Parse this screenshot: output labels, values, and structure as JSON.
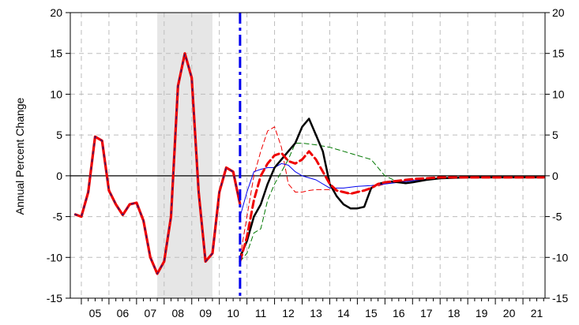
{
  "chart_data": {
    "type": "line",
    "title": "",
    "ylabel": "Annual Percent Change",
    "ylim": [
      -15,
      20
    ],
    "yticks": [
      -15,
      -10,
      -5,
      0,
      5,
      10,
      15,
      20
    ],
    "xlim": [
      2004.6,
      2021.8
    ],
    "xtick_labels": [
      "05",
      "06",
      "07",
      "08",
      "09",
      "10",
      "11",
      "12",
      "13",
      "14",
      "15",
      "16",
      "17",
      "18",
      "19",
      "20",
      "21"
    ],
    "grid": true,
    "zero_line": true,
    "recession_shade": {
      "from": 2007.75,
      "to": 2009.75
    },
    "forecast_start_line": {
      "x": 2010.75,
      "color": "#0000ee"
    },
    "history": {
      "x": [
        2004.75,
        2005.0,
        2005.25,
        2005.5,
        2005.75,
        2006.0,
        2006.25,
        2006.5,
        2006.75,
        2007.0,
        2007.25,
        2007.5,
        2007.75,
        2008.0,
        2008.25,
        2008.5,
        2008.75,
        2009.0,
        2009.25,
        2009.5,
        2009.75,
        2010.0,
        2010.25,
        2010.5,
        2010.75
      ],
      "y": [
        -4.7,
        -5.0,
        -2.0,
        4.8,
        4.3,
        -1.8,
        -3.5,
        -4.8,
        -3.5,
        -3.3,
        -5.5,
        -10.0,
        -12.0,
        -10.5,
        -5.0,
        11.0,
        15.0,
        12.0,
        -2.0,
        -10.5,
        -9.5,
        -2.0,
        1.0,
        0.5,
        -3.5
      ]
    },
    "series": [
      {
        "color": "#000000",
        "dash": "",
        "width": 2.5,
        "x": [
          2010.75,
          2011.0,
          2011.25,
          2011.5,
          2011.75,
          2012.0,
          2012.25,
          2012.5,
          2012.75,
          2013.0,
          2013.25,
          2013.5,
          2013.75,
          2014.0,
          2014.25,
          2014.5,
          2014.75,
          2015.0,
          2015.25,
          2015.5,
          2015.75,
          2016.0,
          2016.25,
          2016.5,
          2016.75,
          2017.0,
          2017.5,
          2018.0,
          2019.0,
          2020.0,
          2021.0,
          2021.75
        ],
        "y": [
          -10.0,
          -8.0,
          -5.0,
          -3.5,
          -1.0,
          1.0,
          2.0,
          3.0,
          4.0,
          6.0,
          7.0,
          5.0,
          3.0,
          -1.0,
          -2.5,
          -3.5,
          -4.0,
          -4.0,
          -3.8,
          -1.5,
          -1.0,
          -0.8,
          -0.7,
          -0.8,
          -0.9,
          -0.8,
          -0.5,
          -0.3,
          -0.2,
          -0.2,
          -0.2,
          -0.2
        ]
      },
      {
        "color": "#ee0000",
        "dash": "9,5",
        "width": 3.0,
        "x": [
          2010.75,
          2011.0,
          2011.25,
          2011.5,
          2011.75,
          2012.0,
          2012.25,
          2012.5,
          2012.75,
          2013.0,
          2013.25,
          2013.5,
          2013.75,
          2014.0,
          2014.25,
          2014.5,
          2014.75,
          2015.0,
          2015.25,
          2015.5,
          2015.75,
          2016.0,
          2016.5,
          2017.0,
          2017.5,
          2018.0,
          2019.0,
          2020.0,
          2021.0,
          2021.75
        ],
        "y": [
          -10.5,
          -7.5,
          -3.0,
          0.0,
          1.5,
          2.5,
          2.8,
          1.8,
          1.5,
          2.0,
          3.0,
          2.0,
          0.5,
          -1.0,
          -1.8,
          -2.0,
          -2.2,
          -2.0,
          -1.8,
          -1.5,
          -1.0,
          -0.8,
          -0.6,
          -0.4,
          -0.3,
          -0.2,
          -0.2,
          -0.2,
          -0.2,
          -0.2
        ]
      },
      {
        "color": "#ee0000",
        "dash": "6,4",
        "width": 1.0,
        "x": [
          2010.75,
          2011.0,
          2011.25,
          2011.5,
          2011.75,
          2012.0,
          2012.25,
          2012.5,
          2012.75,
          2013.0,
          2013.25,
          2013.5,
          2013.75,
          2014.0,
          2014.25,
          2014.5,
          2014.75,
          2015.0,
          2015.5,
          2016.0,
          2016.5,
          2017.0,
          2018.0,
          2019.0,
          2020.0,
          2021.0,
          2021.75
        ],
        "y": [
          -10.0,
          -5.0,
          0.0,
          3.0,
          5.5,
          6.0,
          3.5,
          -1.0,
          -2.0,
          -2.0,
          -1.8,
          -1.7,
          -1.7,
          -1.7,
          -1.8,
          -2.0,
          -2.2,
          -2.0,
          -1.5,
          -1.0,
          -0.7,
          -0.5,
          -0.3,
          -0.2,
          -0.2,
          -0.2,
          -0.2
        ]
      },
      {
        "color": "#007700",
        "dash": "6,4",
        "width": 1.0,
        "x": [
          2010.75,
          2011.0,
          2011.25,
          2011.5,
          2011.75,
          2012.0,
          2012.25,
          2012.5,
          2012.75,
          2013.0,
          2013.5,
          2014.0,
          2014.5,
          2015.0,
          2015.5,
          2016.0,
          2016.5,
          2017.0,
          2018.0,
          2019.0,
          2020.0,
          2021.0,
          2021.75
        ],
        "y": [
          -10.5,
          -9.5,
          -7.0,
          -6.5,
          -3.0,
          -1.0,
          0.5,
          2.0,
          4.0,
          4.0,
          3.8,
          3.5,
          3.0,
          2.5,
          2.0,
          0.0,
          -0.8,
          -0.6,
          -0.3,
          -0.2,
          -0.2,
          -0.2,
          -0.2
        ]
      },
      {
        "color": "#0000ee",
        "dash": "",
        "width": 1.0,
        "x": [
          2010.75,
          2011.0,
          2011.25,
          2011.5,
          2011.75,
          2012.0,
          2012.25,
          2012.5,
          2012.75,
          2013.0,
          2013.5,
          2014.0,
          2014.5,
          2015.0,
          2015.5,
          2016.0,
          2016.5,
          2017.0,
          2018.0,
          2019.0,
          2020.0,
          2021.0,
          2021.75
        ],
        "y": [
          -5.0,
          -2.0,
          0.5,
          0.8,
          1.0,
          1.0,
          1.5,
          1.3,
          0.5,
          0.0,
          -0.5,
          -1.5,
          -1.5,
          -1.3,
          -1.2,
          -1.0,
          -0.8,
          -0.6,
          -0.3,
          -0.2,
          -0.2,
          -0.2,
          -0.2
        ]
      }
    ]
  }
}
